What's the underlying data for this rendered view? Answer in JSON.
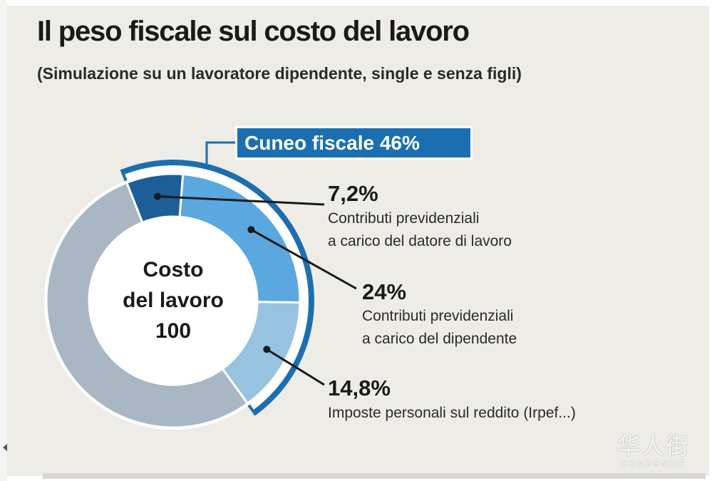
{
  "title": "Il peso fiscale sul costo del lavoro",
  "subtitle": "(Simulazione su un lavoratore dipendente, single e senza figli)",
  "callout": "Cuneo fiscale 46%",
  "center": {
    "line1": "Costo",
    "line2": "del lavoro",
    "line3": "100"
  },
  "watermark": {
    "cjk": "华人街",
    "latin": "HUARENJIE"
  },
  "chart_data": {
    "type": "pie",
    "title": "Il peso fiscale sul costo del lavoro",
    "subtitle": "(Simulazione su un lavoratore dipendente, single e senza figli)",
    "total": 100,
    "total_label": "Costo del lavoro",
    "wedge_total": 46,
    "wedge_label": "Cuneo fiscale 46%",
    "slices": [
      {
        "value": 7.2,
        "label": "7,2%",
        "line1": "Contributi previdenziali",
        "line2": "a carico del datore di lavoro",
        "color": "#1c5e97"
      },
      {
        "value": 24,
        "label": "24%",
        "line1": "Contributi previdenziali",
        "line2": "a carico del dipendente",
        "color": "#5aa8df"
      },
      {
        "value": 14.8,
        "label": "14,8%",
        "line1": "Imposte personali sul reddito (Irpef...)",
        "line2": "",
        "color": "#98c3e0"
      },
      {
        "value": 54,
        "label": "",
        "line1": "",
        "line2": "",
        "color": "#a9b6c4"
      }
    ],
    "colors": {
      "accent": "#1b6fb0",
      "background": "#eeece7"
    }
  }
}
